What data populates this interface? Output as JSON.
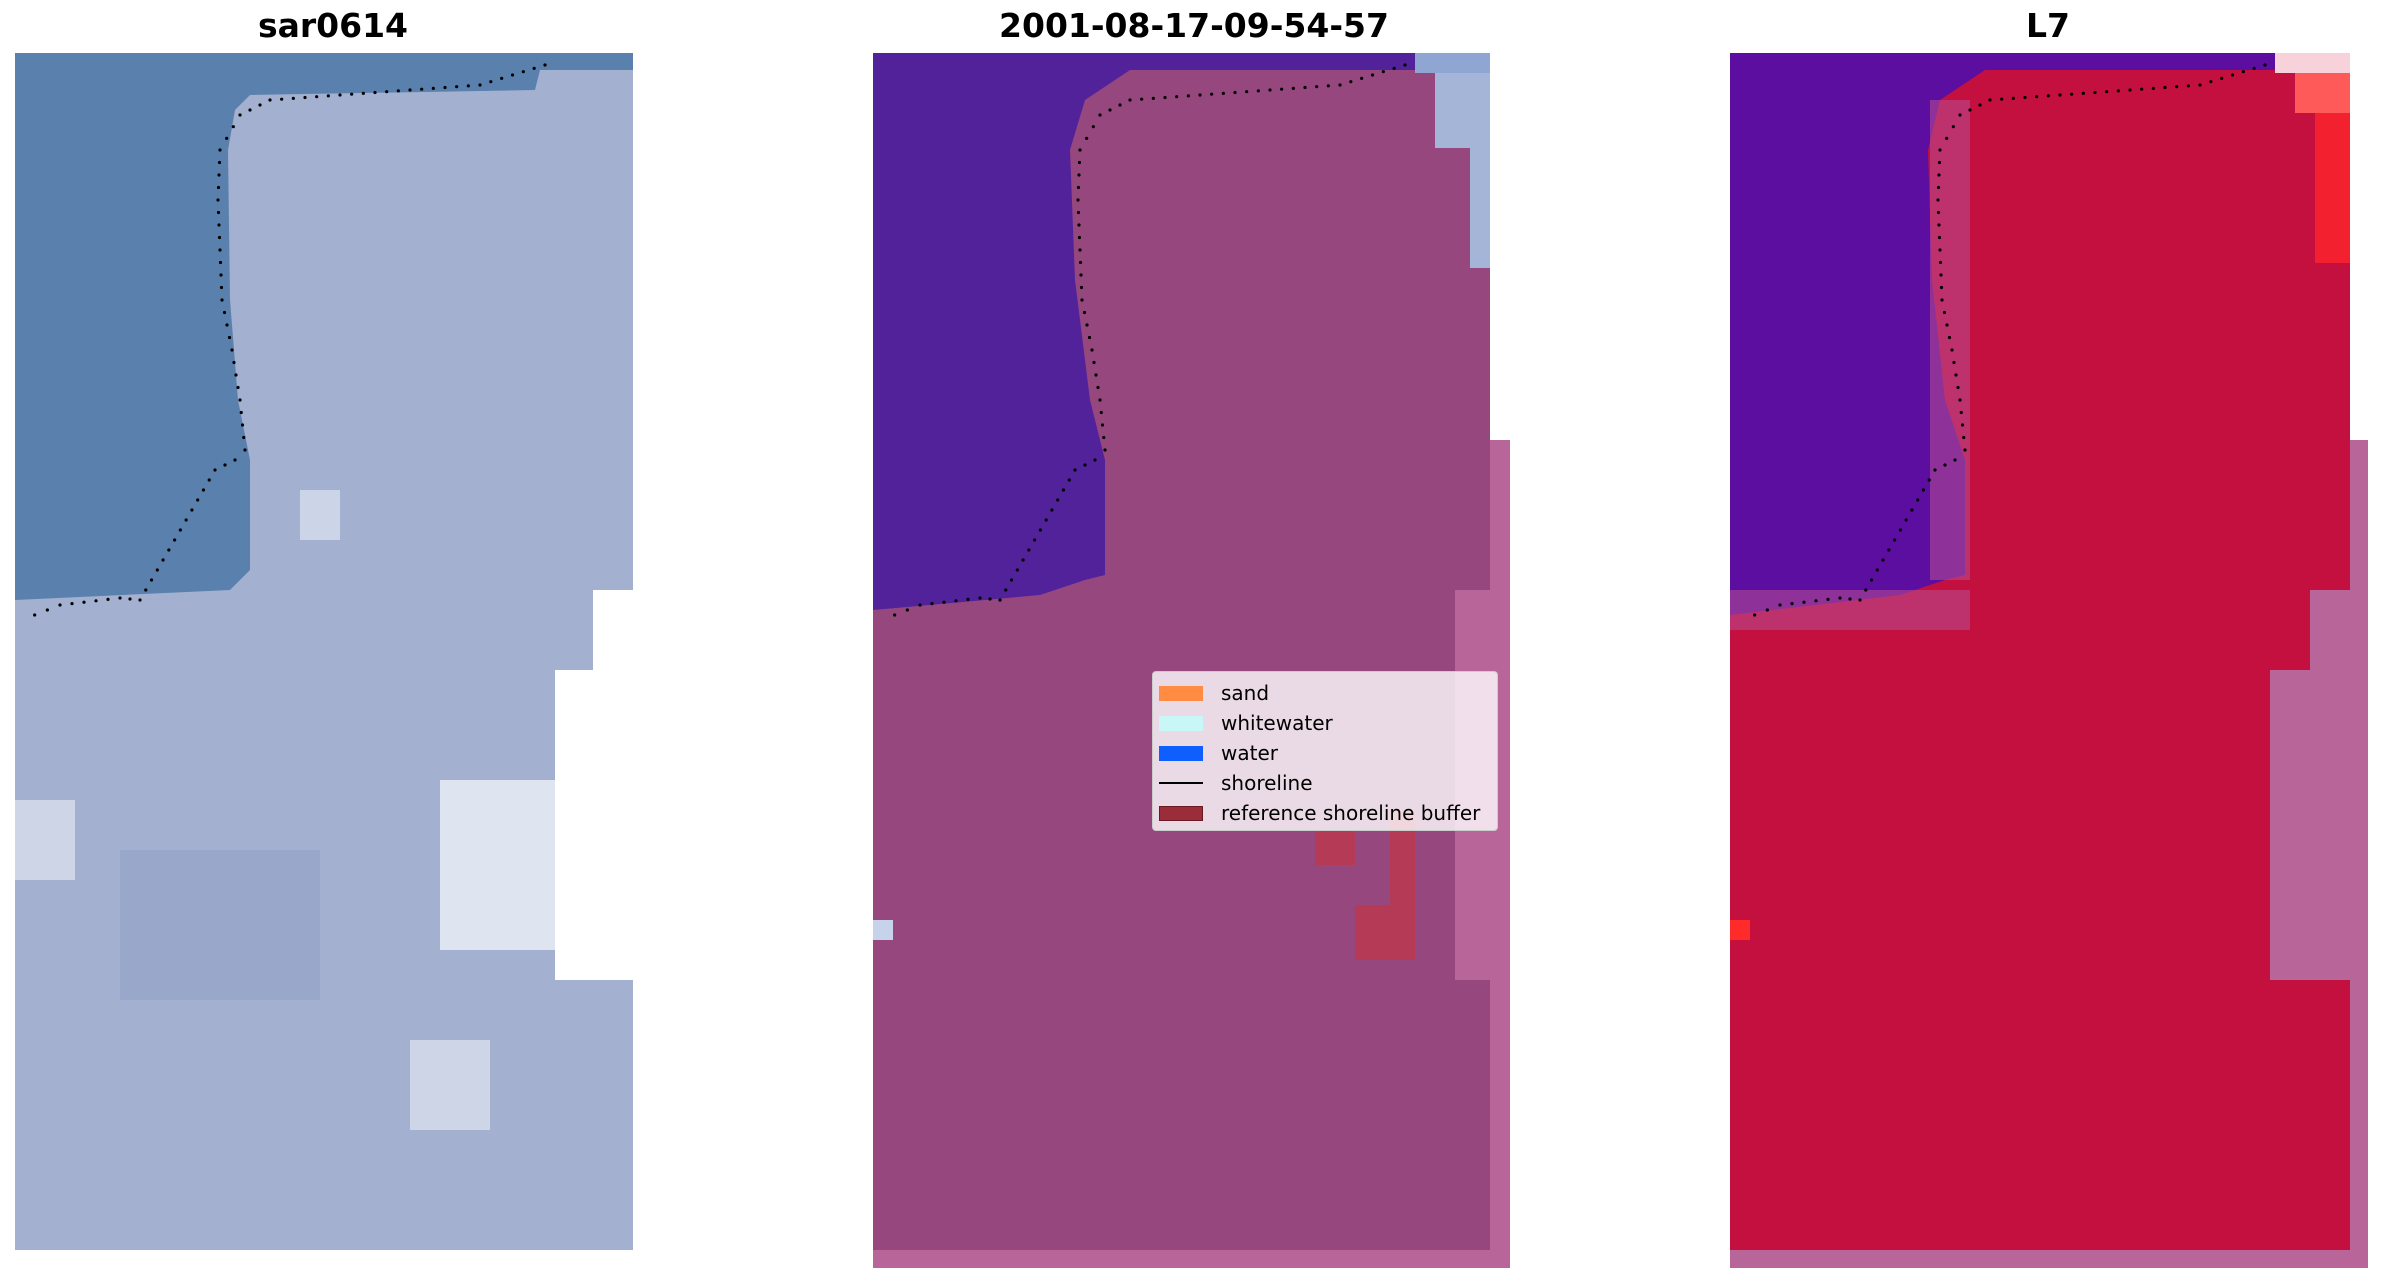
{
  "panels": [
    {
      "title": "sar0614"
    },
    {
      "title": "2001-08-17-09-54-57"
    },
    {
      "title": "L7"
    }
  ],
  "legend": {
    "items": [
      {
        "label": "sand",
        "color": "#ff8c42",
        "kind": "patch"
      },
      {
        "label": "whitewater",
        "color": "#c9f7f7",
        "kind": "patch"
      },
      {
        "label": "water",
        "color": "#0f5fff",
        "kind": "patch"
      },
      {
        "label": "shoreline",
        "color": "#000000",
        "kind": "line"
      },
      {
        "label": "reference shoreline buffer",
        "color": "#9b2d3a",
        "kind": "patch"
      }
    ]
  },
  "colors": {
    "rgb_water": "#5a80ad",
    "rgb_land": "#a3b0d0",
    "classified_water": "#52229a",
    "classified_land": "#96487e",
    "classified_edge": "#b8669a",
    "ndwi_water": "#5c0ea0",
    "ndwi_land": "#c3103f",
    "ndwi_edge": "#b8669a"
  }
}
